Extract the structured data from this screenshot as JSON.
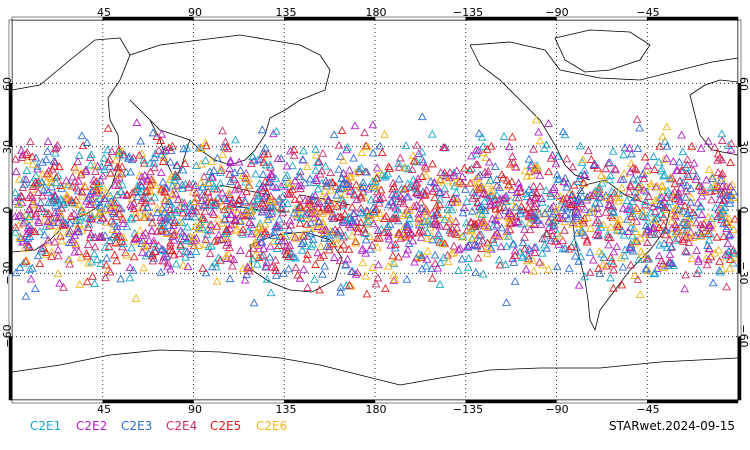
{
  "map": {
    "projection": "cylindrical-equidistant",
    "center_longitude": 180,
    "lon_range": [
      0,
      360
    ],
    "lat_range": [
      -90,
      90
    ],
    "gridlines": "dotted",
    "border_bars": "thick alternating black/white every 45 degrees",
    "top_ticks": [
      "45",
      "90",
      "135",
      "180",
      "−135",
      "−90",
      "−45"
    ],
    "bottom_ticks": [
      "45",
      "90",
      "135",
      "180",
      "−135",
      "−90",
      "−45"
    ],
    "lat_ticks": [
      "60",
      "30",
      "0",
      "−30",
      "−60"
    ],
    "marker_shape": "hollow triangle",
    "marker_density_note": "dense band of overlapping markers between ~45S and ~45N"
  },
  "legend": [
    {
      "label": "C2E1",
      "color": "#19a7c9"
    },
    {
      "label": "C2E2",
      "color": "#b221c9"
    },
    {
      "label": "C2E3",
      "color": "#2f6fd6"
    },
    {
      "label": "C2E4",
      "color": "#cc2b6a"
    },
    {
      "label": "C2E5",
      "color": "#e01f1f"
    },
    {
      "label": "C2E6",
      "color": "#f2b51c"
    }
  ],
  "stamp": "STARwet.2024-09-15"
}
